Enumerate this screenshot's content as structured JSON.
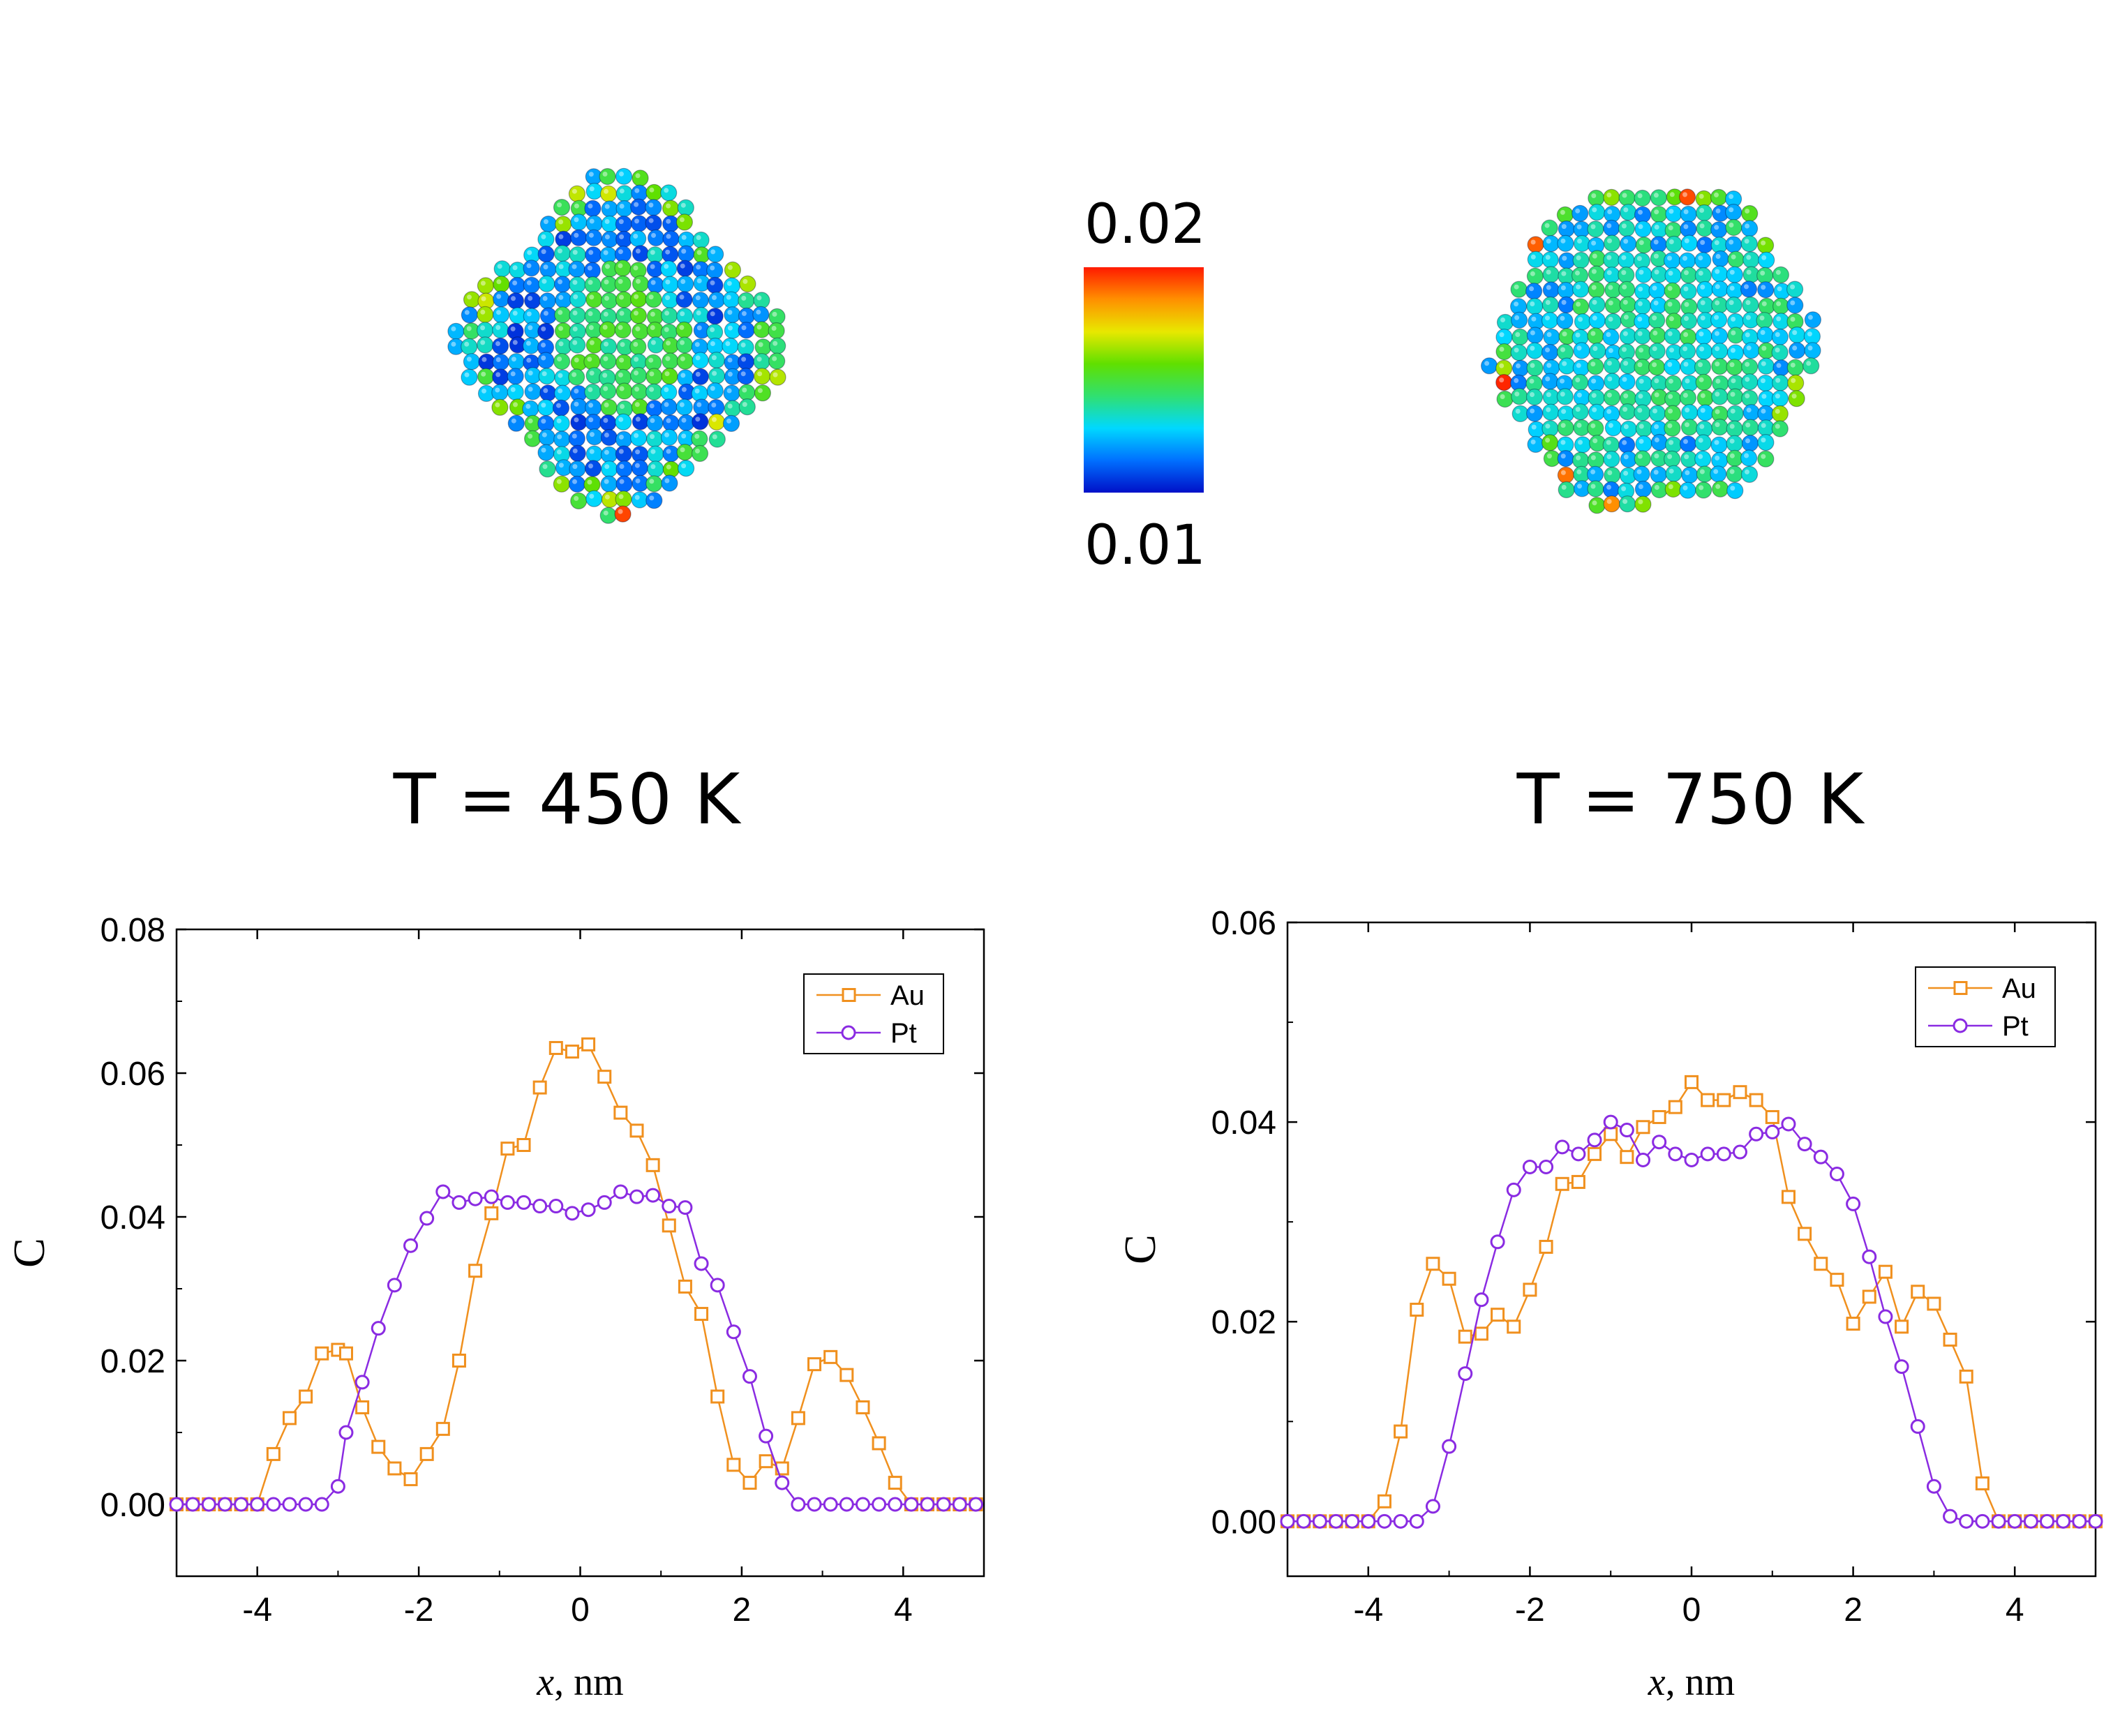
{
  "colorbar": {
    "max_label": "0.02",
    "min_label": "0.01",
    "stops": [
      "#0010c8",
      "#0070ff",
      "#00d8ff",
      "#30e070",
      "#60e000",
      "#e8e800",
      "#ff9000",
      "#ff1a00"
    ]
  },
  "temperatures": {
    "left": "T = 450 K",
    "right": "T = 750 K"
  },
  "colors": {
    "au": "#F0901E",
    "pt": "#8A2BE2"
  },
  "chart_data": [
    {
      "type": "line",
      "panel": "left",
      "temperature": "T = 450 K",
      "xlabel_italic": "x",
      "xlabel_rest": ", nm",
      "ylabel": "C",
      "xlim": [
        -5,
        5
      ],
      "ylim": [
        -0.01,
        0.08
      ],
      "xticks": [
        -4,
        -2,
        0,
        2,
        4
      ],
      "xtick_labels": [
        "-4",
        "-2",
        "0",
        "2",
        "4"
      ],
      "yticks": [
        0.0,
        0.02,
        0.04,
        0.06,
        0.08
      ],
      "ytick_labels": [
        "0.00",
        "0.02",
        "0.04",
        "0.06",
        "0.08"
      ],
      "legend": [
        "Au",
        "Pt"
      ],
      "legend_position": "top-right",
      "series": [
        {
          "name": "Au",
          "marker": "square",
          "x": [
            -5.0,
            -4.8,
            -4.6,
            -4.4,
            -4.2,
            -4.0,
            -3.8,
            -3.6,
            -3.4,
            -3.2,
            -3.0,
            -2.9,
            -2.7,
            -2.5,
            -2.3,
            -2.1,
            -1.9,
            -1.7,
            -1.5,
            -1.3,
            -1.1,
            -0.9,
            -0.7,
            -0.5,
            -0.3,
            -0.1,
            0.1,
            0.3,
            0.5,
            0.7,
            0.9,
            1.1,
            1.3,
            1.5,
            1.7,
            1.9,
            2.1,
            2.3,
            2.5,
            2.7,
            2.9,
            3.1,
            3.3,
            3.5,
            3.7,
            3.9,
            4.1,
            4.3,
            4.5,
            4.7,
            4.9
          ],
          "y": [
            0,
            0,
            0,
            0,
            0,
            0,
            0.007,
            0.012,
            0.015,
            0.021,
            0.0215,
            0.021,
            0.0135,
            0.008,
            0.005,
            0.0035,
            0.007,
            0.0105,
            0.02,
            0.0325,
            0.0405,
            0.0495,
            0.05,
            0.058,
            0.0635,
            0.063,
            0.064,
            0.0595,
            0.0545,
            0.052,
            0.0472,
            0.0388,
            0.0303,
            0.0265,
            0.015,
            0.0055,
            0.003,
            0.006,
            0.005,
            0.012,
            0.0195,
            0.0205,
            0.018,
            0.0135,
            0.0085,
            0.003,
            0,
            0,
            0,
            0,
            0
          ]
        },
        {
          "name": "Pt",
          "marker": "circle",
          "x": [
            -5.0,
            -4.8,
            -4.6,
            -4.4,
            -4.2,
            -4.0,
            -3.8,
            -3.6,
            -3.4,
            -3.2,
            -3.0,
            -2.9,
            -2.7,
            -2.5,
            -2.3,
            -2.1,
            -1.9,
            -1.7,
            -1.5,
            -1.3,
            -1.1,
            -0.9,
            -0.7,
            -0.5,
            -0.3,
            -0.1,
            0.1,
            0.3,
            0.5,
            0.7,
            0.9,
            1.1,
            1.3,
            1.5,
            1.7,
            1.9,
            2.1,
            2.3,
            2.5,
            2.7,
            2.9,
            3.1,
            3.3,
            3.5,
            3.7,
            3.9,
            4.1,
            4.3,
            4.5,
            4.7,
            4.9
          ],
          "y": [
            0,
            0,
            0,
            0,
            0,
            0,
            0,
            0,
            0,
            0,
            0.0025,
            0.01,
            0.017,
            0.0245,
            0.0305,
            0.036,
            0.0398,
            0.0435,
            0.042,
            0.0425,
            0.0428,
            0.042,
            0.042,
            0.0415,
            0.0415,
            0.0405,
            0.041,
            0.042,
            0.0435,
            0.0428,
            0.043,
            0.0415,
            0.0413,
            0.0335,
            0.0305,
            0.024,
            0.0178,
            0.0095,
            0.003,
            0,
            0,
            0,
            0,
            0,
            0,
            0,
            0,
            0,
            0,
            0,
            0
          ]
        }
      ]
    },
    {
      "type": "line",
      "panel": "right",
      "temperature": "T = 750 K",
      "xlabel_italic": "x",
      "xlabel_rest": ", nm",
      "ylabel": "C",
      "xlim": [
        -5,
        5
      ],
      "ylim": [
        -0.0055,
        0.06
      ],
      "xticks": [
        -4,
        -2,
        0,
        2,
        4
      ],
      "xtick_labels": [
        "-4",
        "-2",
        "0",
        "2",
        "4"
      ],
      "yticks": [
        0.0,
        0.02,
        0.04,
        0.06
      ],
      "ytick_labels": [
        "0.00",
        "0.02",
        "0.04",
        "0.06"
      ],
      "legend": [
        "Au",
        "Pt"
      ],
      "legend_position": "top-right",
      "series": [
        {
          "name": "Au",
          "marker": "square",
          "x": [
            -5.0,
            -4.8,
            -4.6,
            -4.4,
            -4.2,
            -4.0,
            -3.8,
            -3.6,
            -3.4,
            -3.2,
            -3.0,
            -2.8,
            -2.6,
            -2.4,
            -2.2,
            -2.0,
            -1.8,
            -1.6,
            -1.4,
            -1.2,
            -1.0,
            -0.8,
            -0.6,
            -0.4,
            -0.2,
            0.0,
            0.2,
            0.4,
            0.6,
            0.8,
            1.0,
            1.2,
            1.4,
            1.6,
            1.8,
            2.0,
            2.2,
            2.4,
            2.6,
            2.8,
            3.0,
            3.2,
            3.4,
            3.6,
            3.8,
            4.0,
            4.2,
            4.4,
            4.6,
            4.8,
            5.0
          ],
          "y": [
            0,
            0,
            0,
            0,
            0,
            0,
            0.002,
            0.009,
            0.0212,
            0.0258,
            0.0243,
            0.0185,
            0.0188,
            0.0207,
            0.0195,
            0.0232,
            0.0275,
            0.0338,
            0.034,
            0.0368,
            0.0388,
            0.0365,
            0.0395,
            0.0405,
            0.0415,
            0.044,
            0.0422,
            0.0422,
            0.043,
            0.0422,
            0.0405,
            0.0325,
            0.0288,
            0.0258,
            0.0242,
            0.0198,
            0.0225,
            0.025,
            0.0195,
            0.023,
            0.0218,
            0.0182,
            0.0145,
            0.0038,
            0,
            0,
            0,
            0,
            0,
            0,
            0
          ]
        },
        {
          "name": "Pt",
          "marker": "circle",
          "x": [
            -5.0,
            -4.8,
            -4.6,
            -4.4,
            -4.2,
            -4.0,
            -3.8,
            -3.6,
            -3.4,
            -3.2,
            -3.0,
            -2.8,
            -2.6,
            -2.4,
            -2.2,
            -2.0,
            -1.8,
            -1.6,
            -1.4,
            -1.2,
            -1.0,
            -0.8,
            -0.6,
            -0.4,
            -0.2,
            0.0,
            0.2,
            0.4,
            0.6,
            0.8,
            1.0,
            1.2,
            1.4,
            1.6,
            1.8,
            2.0,
            2.2,
            2.4,
            2.6,
            2.8,
            3.0,
            3.2,
            3.4,
            3.6,
            3.8,
            4.0,
            4.2,
            4.4,
            4.6,
            4.8,
            5.0
          ],
          "y": [
            0,
            0,
            0,
            0,
            0,
            0,
            0,
            0,
            0,
            0.0015,
            0.0075,
            0.0148,
            0.0222,
            0.028,
            0.0332,
            0.0355,
            0.0355,
            0.0375,
            0.0368,
            0.0382,
            0.04,
            0.0392,
            0.0362,
            0.038,
            0.0368,
            0.0362,
            0.0368,
            0.0368,
            0.037,
            0.0388,
            0.039,
            0.0398,
            0.0378,
            0.0365,
            0.0348,
            0.0318,
            0.0265,
            0.0205,
            0.0155,
            0.0095,
            0.0035,
            0.0005,
            0,
            0,
            0,
            0,
            0,
            0,
            0,
            0,
            0
          ]
        }
      ]
    }
  ]
}
